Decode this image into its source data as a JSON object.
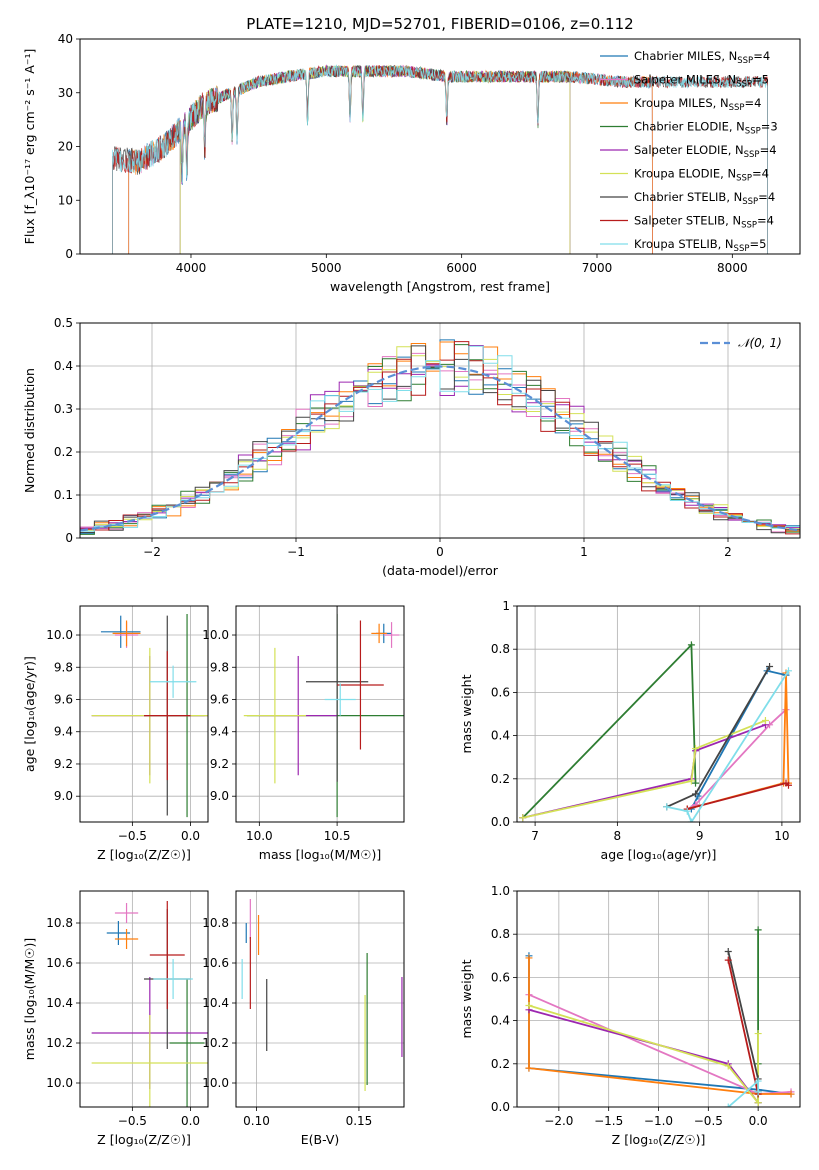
{
  "title": "PLATE=1210, MJD=52701, FIBERID=0106, z=0.112",
  "models": [
    {
      "name": "Chabrier MILES",
      "nssp": "4",
      "color": "#1f77b4"
    },
    {
      "name": "Salpeter MILES",
      "nssp": "5",
      "color": "#e377c2"
    },
    {
      "name": "Kroupa MILES",
      "nssp": "4",
      "color": "#ff7f0e"
    },
    {
      "name": "Chabrier ELODIE",
      "nssp": "3",
      "color": "#2e7d32"
    },
    {
      "name": "Salpeter ELODIE",
      "nssp": "4",
      "color": "#9c27b0"
    },
    {
      "name": "Kroupa ELODIE",
      "nssp": "4",
      "color": "#d4e157"
    },
    {
      "name": "Chabrier STELIB",
      "nssp": "4",
      "color": "#444444"
    },
    {
      "name": "Salpeter STELIB",
      "nssp": "4",
      "color": "#b71c1c"
    },
    {
      "name": "Kroupa STELIB",
      "nssp": "5",
      "color": "#80deea"
    }
  ],
  "chart_data": [
    {
      "id": "spectrum",
      "type": "line",
      "xlabel": "wavelength [Angstrom, rest frame]",
      "ylabel": "Flux [f_λ10⁻¹⁷ erg cm⁻² s⁻¹ A⁻¹]",
      "xlim": [
        3180,
        8500
      ],
      "ylim": [
        0,
        40
      ],
      "xticks": [
        4000,
        5000,
        6000,
        7000,
        8000
      ],
      "yticks": [
        0,
        10,
        20,
        30,
        40
      ],
      "continuum_x": [
        3420,
        3600,
        3800,
        3950,
        4100,
        4300,
        4500,
        4700,
        5000,
        5300,
        5600,
        5900,
        6200,
        6500,
        6800,
        7200,
        7600,
        8000,
        8260
      ],
      "continuum_y": [
        18,
        17,
        20,
        24,
        28,
        30,
        32,
        33,
        34,
        34,
        34,
        33,
        33,
        33,
        33,
        32,
        32,
        32,
        32
      ],
      "absorption_lines": [
        3934,
        3969,
        4102,
        4304,
        4340,
        4861,
        5175,
        5270,
        5890,
        6563
      ],
      "model_ranges": [
        {
          "model": "Chabrier MILES",
          "x": [
            3540,
            7410
          ]
        },
        {
          "model": "Salpeter MILES",
          "x": [
            3540,
            7410
          ]
        },
        {
          "model": "Kroupa MILES",
          "x": [
            3540,
            7410
          ]
        },
        {
          "model": "Chabrier ELODIE",
          "x": [
            3920,
            6800
          ]
        },
        {
          "model": "Salpeter ELODIE",
          "x": [
            3920,
            6800
          ]
        },
        {
          "model": "Kroupa ELODIE",
          "x": [
            3920,
            6800
          ]
        },
        {
          "model": "Chabrier STELIB",
          "x": [
            3420,
            8260
          ]
        },
        {
          "model": "Salpeter STELIB",
          "x": [
            3420,
            8260
          ]
        },
        {
          "model": "Kroupa STELIB",
          "x": [
            3420,
            8260
          ]
        }
      ]
    },
    {
      "id": "residuals",
      "type": "histogram",
      "xlabel": "(data-model)/error",
      "ylabel": "Normed distribution",
      "xlim": [
        -2.5,
        2.5
      ],
      "ylim": [
        0,
        0.5
      ],
      "xticks": [
        -2,
        -1,
        0,
        1,
        2
      ],
      "yticks": [
        0.0,
        0.1,
        0.2,
        0.3,
        0.4,
        0.5
      ],
      "bin_width": 0.1,
      "reference": {
        "label": "𝒩(0, 1)",
        "mean": 0,
        "sigma": 1,
        "color": "#5b8fd6"
      }
    },
    {
      "id": "age_vs_Z",
      "type": "errorbar",
      "xlabel": "Z [log₁₀(Z/Z☉)]",
      "ylabel": "age  [log₁₀(age/yr)]",
      "xlim": [
        -0.95,
        0.15
      ],
      "ylim": [
        8.84,
        10.18
      ],
      "xticks": [
        -0.5,
        0.0
      ],
      "yticks": [
        9.0,
        9.2,
        9.4,
        9.6,
        9.8,
        10.0
      ],
      "points": [
        {
          "model": "Chabrier MILES",
          "x": -0.6,
          "xerr": 0.17,
          "y": 10.02,
          "yerr": 0.1
        },
        {
          "model": "Salpeter MILES",
          "x": -0.55,
          "xerr": 0.1,
          "y": 10.0,
          "yerr": 0.08
        },
        {
          "model": "Kroupa MILES",
          "x": -0.55,
          "xerr": 0.12,
          "y": 10.01,
          "yerr": 0.08
        },
        {
          "model": "Chabrier ELODIE",
          "x": -0.03,
          "xerr": 0.15,
          "y": 9.5,
          "yerr": 0.63
        },
        {
          "model": "Salpeter ELODIE",
          "x": -0.35,
          "xerr": 0.5,
          "y": 9.5,
          "yerr": 0.37
        },
        {
          "model": "Kroupa ELODIE",
          "x": -0.35,
          "xerr": 0.5,
          "y": 9.5,
          "yerr": 0.42
        },
        {
          "model": "Chabrier STELIB",
          "x": -0.2,
          "xerr": 0.2,
          "y": 9.5,
          "yerr": 0.62
        },
        {
          "model": "Salpeter STELIB",
          "x": -0.2,
          "xerr": 0.2,
          "y": 9.5,
          "yerr": 0.4
        },
        {
          "model": "Kroupa STELIB",
          "x": -0.15,
          "xerr": 0.2,
          "y": 9.71,
          "yerr": 0.1
        }
      ]
    },
    {
      "id": "age_vs_mass",
      "type": "errorbar",
      "xlabel": "mass [log₁₀(M/M☉)]",
      "ylabel": "",
      "xlim": [
        9.85,
        10.93
      ],
      "ylim": [
        8.84,
        10.18
      ],
      "xticks": [
        10.0,
        10.5
      ],
      "yticks": [
        9.0,
        9.2,
        9.4,
        9.6,
        9.8,
        10.0
      ],
      "points": [
        {
          "model": "Chabrier MILES",
          "x": 10.8,
          "xerr": 0.05,
          "y": 10.01,
          "yerr": 0.06
        },
        {
          "model": "Salpeter MILES",
          "x": 10.85,
          "xerr": 0.05,
          "y": 10.0,
          "yerr": 0.08
        },
        {
          "model": "Kroupa MILES",
          "x": 10.77,
          "xerr": 0.05,
          "y": 10.01,
          "yerr": 0.06
        },
        {
          "model": "Chabrier ELODIE",
          "x": 10.5,
          "xerr": 0.58,
          "y": 9.5,
          "yerr": 0.63
        },
        {
          "model": "Salpeter ELODIE",
          "x": 10.25,
          "xerr": 0.25,
          "y": 9.5,
          "yerr": 0.37
        },
        {
          "model": "Kroupa ELODIE",
          "x": 10.1,
          "xerr": 0.2,
          "y": 9.5,
          "yerr": 0.42
        },
        {
          "model": "Chabrier STELIB",
          "x": 10.5,
          "xerr": 0.2,
          "y": 9.71,
          "yerr": 0.62
        },
        {
          "model": "Salpeter STELIB",
          "x": 10.65,
          "xerr": 0.15,
          "y": 9.69,
          "yerr": 0.4
        },
        {
          "model": "Kroupa STELIB",
          "x": 10.52,
          "xerr": 0.1,
          "y": 9.6,
          "yerr": 0.1
        }
      ]
    },
    {
      "id": "weight_vs_age",
      "type": "line",
      "xlabel": "age  [log₁₀(age/yr)]",
      "ylabel": "mass weight",
      "xlim": [
        6.78,
        10.22
      ],
      "ylim": [
        0,
        1
      ],
      "xticks": [
        7,
        8,
        9,
        10
      ],
      "yticks": [
        0.0,
        0.2,
        0.4,
        0.6,
        0.8,
        1.0
      ],
      "series": [
        {
          "model": "Chabrier MILES",
          "x": [
            8.9,
            8.98,
            9.82,
            10.05
          ],
          "y": [
            0.06,
            0.12,
            0.7,
            0.68
          ]
        },
        {
          "model": "Salpeter MILES",
          "x": [
            8.85,
            8.95,
            9.85,
            10.05
          ],
          "y": [
            0.06,
            0.08,
            0.45,
            0.52
          ]
        },
        {
          "model": "Kroupa MILES",
          "x": [
            8.85,
            10.02,
            10.05,
            10.08
          ],
          "y": [
            0.06,
            0.18,
            0.69,
            0.18
          ]
        },
        {
          "model": "Chabrier ELODIE",
          "x": [
            6.85,
            8.9,
            8.95
          ],
          "y": [
            0.02,
            0.82,
            0.18
          ]
        },
        {
          "model": "Salpeter ELODIE",
          "x": [
            6.85,
            8.9,
            8.95,
            9.8
          ],
          "y": [
            0.02,
            0.2,
            0.33,
            0.45
          ]
        },
        {
          "model": "Kroupa ELODIE",
          "x": [
            6.85,
            8.9,
            8.95,
            9.8
          ],
          "y": [
            0.02,
            0.19,
            0.34,
            0.47
          ]
        },
        {
          "model": "Chabrier STELIB",
          "x": [
            8.6,
            8.95,
            9.85
          ],
          "y": [
            0.07,
            0.13,
            0.72
          ]
        },
        {
          "model": "Salpeter STELIB",
          "x": [
            8.85,
            10.05,
            10.08
          ],
          "y": [
            0.06,
            0.18,
            0.17
          ]
        },
        {
          "model": "Kroupa STELIB",
          "x": [
            8.6,
            8.85,
            8.9,
            10.08
          ],
          "y": [
            0.07,
            0.05,
            0.0,
            0.7
          ]
        }
      ]
    },
    {
      "id": "mass_vs_Z",
      "type": "errorbar",
      "xlabel": "Z [log₁₀(Z/Z☉)]",
      "ylabel": "mass [log₁₀(M/M☉)]",
      "xlim": [
        -0.95,
        0.15
      ],
      "ylim": [
        9.88,
        10.96
      ],
      "xticks": [
        -0.5,
        0.0
      ],
      "yticks": [
        10.0,
        10.2,
        10.4,
        10.6,
        10.8
      ],
      "points": [
        {
          "model": "Chabrier MILES",
          "x": -0.62,
          "xerr": 0.1,
          "y": 10.75,
          "yerr": 0.06
        },
        {
          "model": "Salpeter MILES",
          "x": -0.55,
          "xerr": 0.1,
          "y": 10.85,
          "yerr": 0.05
        },
        {
          "model": "Kroupa MILES",
          "x": -0.55,
          "xerr": 0.1,
          "y": 10.72,
          "yerr": 0.05
        },
        {
          "model": "Chabrier ELODIE",
          "x": -0.03,
          "xerr": 0.15,
          "y": 10.2,
          "yerr": 0.32
        },
        {
          "model": "Salpeter ELODIE",
          "x": -0.35,
          "xerr": 0.5,
          "y": 10.25,
          "yerr": 0.28
        },
        {
          "model": "Kroupa ELODIE",
          "x": -0.35,
          "xerr": 0.5,
          "y": 10.1,
          "yerr": 0.24
        },
        {
          "model": "Chabrier STELIB",
          "x": -0.2,
          "xerr": 0.2,
          "y": 10.52,
          "yerr": 0.35
        },
        {
          "model": "Salpeter STELIB",
          "x": -0.2,
          "xerr": 0.15,
          "y": 10.64,
          "yerr": 0.27
        },
        {
          "model": "Kroupa STELIB",
          "x": -0.15,
          "xerr": 0.17,
          "y": 10.52,
          "yerr": 0.1
        }
      ]
    },
    {
      "id": "mass_vs_EBV",
      "type": "errorbar",
      "xlabel": "E(B-V)",
      "ylabel": "",
      "xlim": [
        0.09,
        0.172
      ],
      "ylim": [
        9.88,
        10.96
      ],
      "xticks": [
        0.1,
        0.15
      ],
      "yticks": [
        10.0,
        10.2,
        10.4,
        10.6,
        10.8
      ],
      "points": [
        {
          "model": "Chabrier MILES",
          "x": 0.095,
          "yerr": 0.05,
          "y": 10.75
        },
        {
          "model": "Salpeter MILES",
          "x": 0.097,
          "yerr": 0.1,
          "y": 10.82
        },
        {
          "model": "Kroupa MILES",
          "x": 0.101,
          "yerr": 0.1,
          "y": 10.74
        },
        {
          "model": "Chabrier ELODIE",
          "x": 0.154,
          "yerr": 0.33,
          "y": 10.32
        },
        {
          "model": "Salpeter ELODIE",
          "x": 0.171,
          "yerr": 0.2,
          "y": 10.33
        },
        {
          "model": "Kroupa ELODIE",
          "x": 0.153,
          "yerr": 0.24,
          "y": 10.2
        },
        {
          "model": "Chabrier STELIB",
          "x": 0.105,
          "yerr": 0.18,
          "y": 10.34
        },
        {
          "model": "Salpeter STELIB",
          "x": 0.097,
          "yerr": 0.18,
          "y": 10.55
        },
        {
          "model": "Kroupa STELIB",
          "x": 0.093,
          "yerr": 0.1,
          "y": 10.52
        }
      ]
    },
    {
      "id": "weight_vs_Z",
      "type": "line",
      "xlabel": "Z [log₁₀(Z/Z☉)]",
      "ylabel": "mass weight",
      "xlim": [
        -2.42,
        0.42
      ],
      "ylim": [
        0,
        1
      ],
      "xticks": [
        -2.0,
        -1.5,
        -1.0,
        -0.5,
        0.0
      ],
      "yticks": [
        0.0,
        0.2,
        0.4,
        0.6,
        0.8,
        1.0
      ],
      "series": [
        {
          "model": "Chabrier MILES",
          "x": [
            -2.3,
            -2.3,
            0.0,
            0.33
          ],
          "y": [
            0.7,
            0.18,
            0.08,
            0.06
          ]
        },
        {
          "model": "Salpeter MILES",
          "x": [
            -2.3,
            0.0,
            0.33
          ],
          "y": [
            0.52,
            0.06,
            0.07
          ]
        },
        {
          "model": "Kroupa MILES",
          "x": [
            -2.3,
            -2.3,
            0.0,
            0.33
          ],
          "y": [
            0.69,
            0.18,
            0.06,
            0.06
          ]
        },
        {
          "model": "Chabrier ELODIE",
          "x": [
            0.0,
            0.0,
            0.0
          ],
          "y": [
            0.82,
            0.2,
            0.02
          ]
        },
        {
          "model": "Salpeter ELODIE",
          "x": [
            -2.3,
            -0.3,
            0.0
          ],
          "y": [
            0.45,
            0.2,
            0.02
          ]
        },
        {
          "model": "Kroupa ELODIE",
          "x": [
            -2.3,
            -0.3,
            0.0,
            0.0
          ],
          "y": [
            0.47,
            0.19,
            0.02,
            0.34
          ]
        },
        {
          "model": "Chabrier STELIB",
          "x": [
            -0.3,
            0.0,
            0.0
          ],
          "y": [
            0.72,
            0.13,
            0.07
          ]
        },
        {
          "model": "Salpeter STELIB",
          "x": [
            -0.3,
            0.0
          ],
          "y": [
            0.68,
            0.06
          ]
        },
        {
          "model": "Kroupa STELIB",
          "x": [
            -0.3,
            0.0,
            0.0
          ],
          "y": [
            0.0,
            0.12,
            0.07
          ]
        }
      ]
    }
  ]
}
